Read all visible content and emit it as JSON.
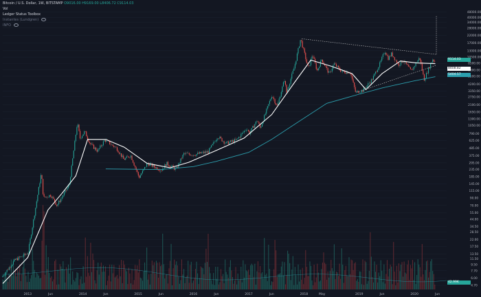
{
  "header": {
    "symbol": "Bitcoin / U.S. Dollar",
    "interval": "1W",
    "exchange": "BITSTAMP",
    "ohlc": "O9016.00  H9169.00  L8406.72  C9114.03",
    "volume_label": "Vol",
    "indicator_1": "Ledger Status Toolbox",
    "indicator_2": "Instantes (Lundgren)",
    "indicator_3": "INFO"
  },
  "price_labels": {
    "current": "9114.03",
    "ma_short": "8408.82",
    "ma_long": "5404.57",
    "volume_value": "42.99K"
  },
  "colors": {
    "background": "#131722",
    "up": "#26a69a",
    "down": "#ef5350",
    "ma_short": "#ffffff",
    "ma_long": "#2c9fae",
    "trendline": "#c8c8c8",
    "grid": "#1e2433",
    "text": "#b2b5be"
  },
  "chart_data": {
    "type": "candlestick",
    "symbol": "Bitcoin / U.S. Dollar",
    "scale": "log",
    "y_ticks": [
      "48000.00",
      "40000.00",
      "34000.00",
      "28000.00",
      "22000.00",
      "17000.00",
      "13000.00",
      "10500.00",
      "8500.00",
      "6800.00",
      "5500.00",
      "4200.00",
      "3350.00",
      "2750.00",
      "2100.00",
      "1650.00",
      "1300.00",
      "1050.00",
      "790.00",
      "625.00",
      "485.00",
      "375.00",
      "295.00",
      "235.00",
      "185.00",
      "145.00",
      "115.00",
      "90.00",
      "70.00",
      "55.00",
      "44.00",
      "34.50",
      "28.50",
      "22.00",
      "17.50",
      "13.50",
      "11.50",
      "9.50",
      "7.70",
      "6.00",
      "4.70"
    ],
    "x_ticks": [
      "2013",
      "Jun",
      "2014",
      "Jun",
      "2015",
      "Jun",
      "2016",
      "Jun",
      "2017",
      "Jun",
      "2018",
      "May",
      "2019",
      "Jun",
      "2020",
      "Jun"
    ],
    "ylim": [
      4,
      60000
    ],
    "xlim": [
      "2012-07-20",
      "2020-08-01"
    ],
    "grid": false,
    "key_points": [
      {
        "date": "2012-07-20",
        "price": 6.2
      },
      {
        "date": "2012-10-15",
        "price": 11
      },
      {
        "date": "2013-01-10",
        "price": 14
      },
      {
        "date": "2013-04-08",
        "price": 210
      },
      {
        "date": "2013-04-22",
        "price": 90
      },
      {
        "date": "2013-06-10",
        "price": 100
      },
      {
        "date": "2013-07-20",
        "price": 70
      },
      {
        "date": "2013-10-10",
        "price": 140
      },
      {
        "date": "2013-12-02",
        "price": 1150
      },
      {
        "date": "2013-12-20",
        "price": 680
      },
      {
        "date": "2014-01-20",
        "price": 850
      },
      {
        "date": "2014-02-25",
        "price": 560
      },
      {
        "date": "2014-04-15",
        "price": 440
      },
      {
        "date": "2014-06-02",
        "price": 640
      },
      {
        "date": "2014-08-20",
        "price": 480
      },
      {
        "date": "2014-10-05",
        "price": 330
      },
      {
        "date": "2014-11-20",
        "price": 380
      },
      {
        "date": "2015-01-14",
        "price": 180
      },
      {
        "date": "2015-03-10",
        "price": 290
      },
      {
        "date": "2015-06-10",
        "price": 230
      },
      {
        "date": "2015-07-15",
        "price": 290
      },
      {
        "date": "2015-09-15",
        "price": 235
      },
      {
        "date": "2015-11-05",
        "price": 400
      },
      {
        "date": "2016-01-15",
        "price": 390
      },
      {
        "date": "2016-04-15",
        "price": 430
      },
      {
        "date": "2016-06-18",
        "price": 720
      },
      {
        "date": "2016-08-10",
        "price": 570
      },
      {
        "date": "2016-10-20",
        "price": 640
      },
      {
        "date": "2016-12-25",
        "price": 950
      },
      {
        "date": "2017-01-12",
        "price": 800
      },
      {
        "date": "2017-03-05",
        "price": 1250
      },
      {
        "date": "2017-03-25",
        "price": 950
      },
      {
        "date": "2017-06-10",
        "price": 2900
      },
      {
        "date": "2017-07-15",
        "price": 2000
      },
      {
        "date": "2017-09-01",
        "price": 4900
      },
      {
        "date": "2017-09-15",
        "price": 3200
      },
      {
        "date": "2017-11-05",
        "price": 7400
      },
      {
        "date": "2017-12-17",
        "price": 19500
      },
      {
        "date": "2018-02-06",
        "price": 7000
      },
      {
        "date": "2018-03-05",
        "price": 11500
      },
      {
        "date": "2018-04-05",
        "price": 6600
      },
      {
        "date": "2018-05-05",
        "price": 9800
      },
      {
        "date": "2018-06-25",
        "price": 5900
      },
      {
        "date": "2018-07-25",
        "price": 8400
      },
      {
        "date": "2018-09-15",
        "price": 6400
      },
      {
        "date": "2018-11-10",
        "price": 6300
      },
      {
        "date": "2018-12-15",
        "price": 3200
      },
      {
        "date": "2019-02-01",
        "price": 3400
      },
      {
        "date": "2019-04-05",
        "price": 5000
      },
      {
        "date": "2019-05-28",
        "price": 8700
      },
      {
        "date": "2019-06-26",
        "price": 13000
      },
      {
        "date": "2019-07-20",
        "price": 10000
      },
      {
        "date": "2019-08-10",
        "price": 11800
      },
      {
        "date": "2019-09-25",
        "price": 8100
      },
      {
        "date": "2019-10-26",
        "price": 9400
      },
      {
        "date": "2019-12-18",
        "price": 6500
      },
      {
        "date": "2020-01-20",
        "price": 8700
      },
      {
        "date": "2020-02-12",
        "price": 10300
      },
      {
        "date": "2020-03-12",
        "price": 4900
      },
      {
        "date": "2020-04-10",
        "price": 7000
      },
      {
        "date": "2020-05-08",
        "price": 9800
      },
      {
        "date": "2020-05-18",
        "price": 9114
      }
    ],
    "ma_short": [
      {
        "date": "2012-07-20",
        "price": 5
      },
      {
        "date": "2013-01-01",
        "price": 12
      },
      {
        "date": "2013-05-15",
        "price": 60
      },
      {
        "date": "2013-08-15",
        "price": 105
      },
      {
        "date": "2013-11-15",
        "price": 190
      },
      {
        "date": "2014-02-01",
        "price": 650
      },
      {
        "date": "2014-06-01",
        "price": 650
      },
      {
        "date": "2014-10-01",
        "price": 500
      },
      {
        "date": "2015-03-01",
        "price": 290
      },
      {
        "date": "2015-08-01",
        "price": 250
      },
      {
        "date": "2015-12-01",
        "price": 300
      },
      {
        "date": "2016-06-01",
        "price": 450
      },
      {
        "date": "2016-12-01",
        "price": 680
      },
      {
        "date": "2017-06-01",
        "price": 1500
      },
      {
        "date": "2017-11-01",
        "price": 4500
      },
      {
        "date": "2018-02-15",
        "price": 9500
      },
      {
        "date": "2018-07-01",
        "price": 7700
      },
      {
        "date": "2018-11-15",
        "price": 6000
      },
      {
        "date": "2019-02-15",
        "price": 3500
      },
      {
        "date": "2019-06-01",
        "price": 6000
      },
      {
        "date": "2019-10-01",
        "price": 9200
      },
      {
        "date": "2020-01-15",
        "price": 8600
      },
      {
        "date": "2020-05-18",
        "price": 8409
      }
    ],
    "ma_long": [
      {
        "date": "2014-06-01",
        "price": 240
      },
      {
        "date": "2015-06-01",
        "price": 235
      },
      {
        "date": "2016-01-01",
        "price": 260
      },
      {
        "date": "2016-06-01",
        "price": 310
      },
      {
        "date": "2017-01-01",
        "price": 420
      },
      {
        "date": "2017-06-01",
        "price": 650
      },
      {
        "date": "2017-12-01",
        "price": 1200
      },
      {
        "date": "2018-06-01",
        "price": 2200
      },
      {
        "date": "2019-01-01",
        "price": 3000
      },
      {
        "date": "2019-06-01",
        "price": 3700
      },
      {
        "date": "2020-01-01",
        "price": 4700
      },
      {
        "date": "2020-05-18",
        "price": 5405
      }
    ],
    "trendlines": [
      {
        "from": {
          "date": "2017-12-17",
          "price": 19500
        },
        "to": {
          "date": "2020-05-25",
          "price": 11500
        }
      },
      {
        "from": {
          "date": "2018-12-15",
          "price": 3200
        },
        "to": {
          "date": "2020-05-25",
          "price": 8000
        }
      }
    ],
    "projection": {
      "date": "2020-05-25",
      "from": 11500,
      "to": 42000
    }
  }
}
